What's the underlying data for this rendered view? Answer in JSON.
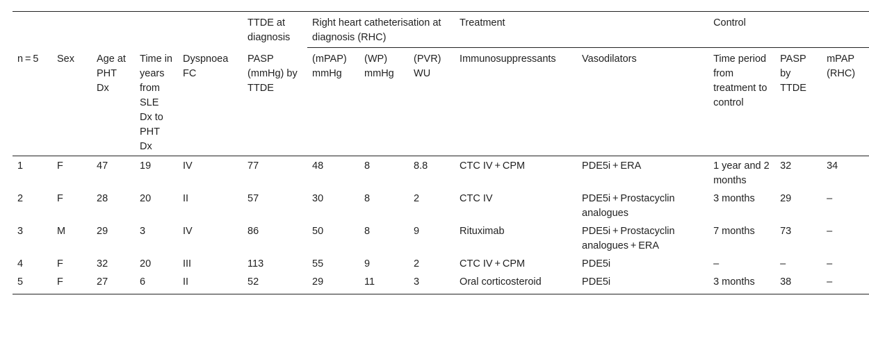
{
  "header": {
    "groups": {
      "ttde": "TTDE at diagnosis",
      "rhc": "Right heart catheterisation at diagnosis (RHC)",
      "treatment": "Treatment",
      "control": "Control"
    },
    "columns": [
      "n = 5",
      "Sex",
      "Age at PHT Dx",
      "Time in years from SLE Dx to PHT Dx",
      "Dyspnoea FC",
      "PASP (mmHg) by TTDE",
      "(mPAP) mmHg",
      "(WP) mmHg",
      "(PVR) WU",
      "Immunosuppressants",
      "Vasodilators",
      "Time period from treatment to control",
      "PASP by TTDE",
      "mPAP (RHC)"
    ]
  },
  "rows": [
    [
      "1",
      "F",
      "47",
      "19",
      "IV",
      "77",
      "48",
      "8",
      "8.8",
      "CTC IV + CPM",
      "PDE5i + ERA",
      "1 year and 2 months",
      "32",
      "34"
    ],
    [
      "2",
      "F",
      "28",
      "20",
      "II",
      "57",
      "30",
      "8",
      "2",
      "CTC IV",
      "PDE5i + Prostacyclin analogues",
      "3 months",
      "29",
      "–"
    ],
    [
      "3",
      "M",
      "29",
      "3",
      "IV",
      "86",
      "50",
      "8",
      "9",
      "Rituximab",
      "PDE5i + Prostacyclin analogues + ERA",
      "7 months",
      "73",
      "–"
    ],
    [
      "4",
      "F",
      "32",
      "20",
      "III",
      "113",
      "55",
      "9",
      "2",
      "CTC IV + CPM",
      "PDE5i",
      "–",
      "–",
      "–"
    ],
    [
      "5",
      "F",
      "27",
      "6",
      "II",
      "52",
      "29",
      "11",
      "3",
      "Oral corticosteroid",
      "PDE5i",
      "3 months",
      "38",
      "–"
    ]
  ]
}
